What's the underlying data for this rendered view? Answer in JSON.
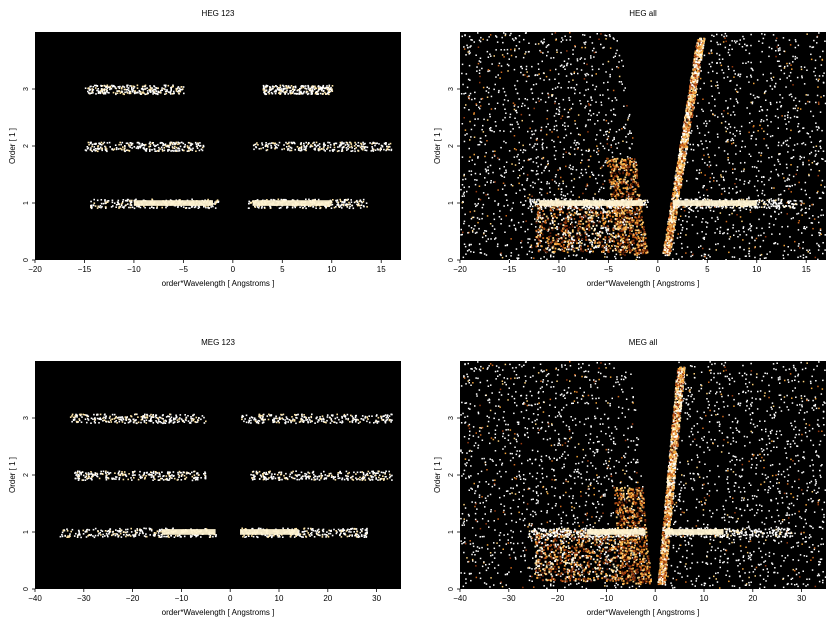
{
  "chart_data": [
    {
      "type": "heatmap",
      "title": "HEG 123",
      "xlabel": "order*Wavelength [ Angstroms ]",
      "ylabel": "Order [ 1 ]",
      "xlim": [
        -20,
        17
      ],
      "ylim": [
        0,
        4
      ],
      "xticks": [
        -20,
        -15,
        -10,
        -5,
        0,
        5,
        10,
        15
      ],
      "yticks": [
        0,
        1,
        2,
        3
      ],
      "rows": [
        {
          "order": 1,
          "ranges": [
            [
              -14.5,
              -1.5
            ],
            [
              1.5,
              13.5
            ]
          ],
          "bright": [
            [
              -10,
              -2
            ],
            [
              2,
              10
            ]
          ]
        },
        {
          "order": 2,
          "ranges": [
            [
              -15,
              -3
            ],
            [
              2,
              16
            ]
          ]
        },
        {
          "order": 3,
          "ranges": [
            [
              -15,
              -5
            ],
            [
              3,
              10
            ]
          ]
        }
      ]
    },
    {
      "type": "heatmap",
      "title": "HEG all",
      "xlabel": "order*Wavelength [ Angstroms ]",
      "ylabel": "Order [ 1 ]",
      "xlim": [
        -20,
        17
      ],
      "ylim": [
        0,
        4
      ],
      "xticks": [
        -20,
        -15,
        -10,
        -5,
        0,
        5,
        10,
        15
      ],
      "yticks": [
        0,
        1,
        2,
        3
      ],
      "rows": [
        {
          "order": 1,
          "ranges": [
            [
              -13,
              -1
            ],
            [
              1.5,
              14
            ]
          ],
          "bright": [
            [
              -12,
              -1.5
            ],
            [
              1.5,
              10
            ]
          ]
        }
      ],
      "wedge": {
        "left_edge": [
          [
            -1.2,
            0.3
          ],
          [
            -4,
            4
          ]
        ],
        "right_edge": [
          [
            0.6,
            0.3
          ],
          [
            4,
            4
          ]
        ]
      }
    },
    {
      "type": "heatmap",
      "title": "MEG 123",
      "xlabel": "order*Wavelength [ Angstroms ]",
      "ylabel": "Order [ 1 ]",
      "xlim": [
        -40,
        35
      ],
      "ylim": [
        0,
        4
      ],
      "xticks": [
        -40,
        -30,
        -20,
        -10,
        0,
        10,
        20,
        30
      ],
      "yticks": [
        0,
        1,
        2,
        3
      ],
      "rows": [
        {
          "order": 1,
          "ranges": [
            [
              -35,
              -3
            ],
            [
              2,
              28
            ]
          ],
          "bright": [
            [
              -14,
              -3
            ],
            [
              2,
              14
            ]
          ]
        },
        {
          "order": 2,
          "ranges": [
            [
              -32,
              -5
            ],
            [
              4,
              33
            ]
          ]
        },
        {
          "order": 3,
          "ranges": [
            [
              -33,
              -5
            ],
            [
              2,
              33
            ]
          ]
        }
      ]
    },
    {
      "type": "heatmap",
      "title": "MEG all",
      "xlabel": "order*Wavelength [ Angstroms ]",
      "ylabel": "Order [ 1 ]",
      "xlim": [
        -40,
        35
      ],
      "ylim": [
        0,
        4
      ],
      "xticks": [
        -40,
        -30,
        -20,
        -10,
        0,
        10,
        20,
        30
      ],
      "yticks": [
        0,
        1,
        2,
        3
      ],
      "rows": [
        {
          "order": 1,
          "ranges": [
            [
              -26,
              -2
            ],
            [
              2,
              28
            ]
          ],
          "bright": [
            [
              -14,
              -2
            ],
            [
              2,
              14
            ]
          ]
        }
      ],
      "wedge": {
        "left_edge": [
          [
            -1,
            0.2
          ],
          [
            -5,
            4
          ]
        ],
        "right_edge": [
          [
            0.5,
            0.2
          ],
          [
            4.5,
            4
          ]
        ]
      }
    }
  ]
}
